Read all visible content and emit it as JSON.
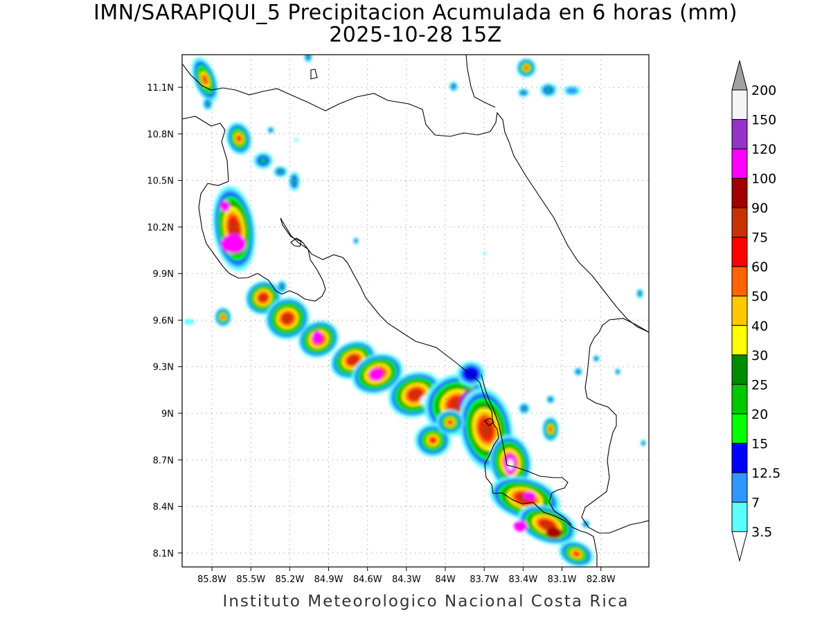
{
  "header": {
    "title_line1": "IMN/SARAPIQUI_5 Precipitacion Acumulada en 6 horas (mm)",
    "title_line2": "2025-10-28 15Z"
  },
  "footer": {
    "credit": "Instituto Meteorologico Nacional Costa Rica"
  },
  "map": {
    "lon_range": [
      -86.03,
      -82.43
    ],
    "lat_range": [
      8.01,
      11.31
    ],
    "lon_ticks": [
      {
        "value": -85.8,
        "label": "85.8W"
      },
      {
        "value": -85.5,
        "label": "85.5W"
      },
      {
        "value": -85.2,
        "label": "85.2W"
      },
      {
        "value": -84.9,
        "label": "84.9W"
      },
      {
        "value": -84.6,
        "label": "84.6W"
      },
      {
        "value": -84.3,
        "label": "84.3W"
      },
      {
        "value": -84.0,
        "label": "84W"
      },
      {
        "value": -83.7,
        "label": "83.7W"
      },
      {
        "value": -83.4,
        "label": "83.4W"
      },
      {
        "value": -83.1,
        "label": "83.1W"
      },
      {
        "value": -82.8,
        "label": "82.8W"
      }
    ],
    "lat_ticks": [
      {
        "value": 11.1,
        "label": "11.1N"
      },
      {
        "value": 10.8,
        "label": "10.8N"
      },
      {
        "value": 10.5,
        "label": "10.5N"
      },
      {
        "value": 10.2,
        "label": "10.2N"
      },
      {
        "value": 9.9,
        "label": "9.9N"
      },
      {
        "value": 9.6,
        "label": "9.6N"
      },
      {
        "value": 9.3,
        "label": "9.3N"
      },
      {
        "value": 9.0,
        "label": "9N"
      },
      {
        "value": 8.7,
        "label": "8.7N"
      },
      {
        "value": 8.4,
        "label": "8.4N"
      },
      {
        "value": 8.1,
        "label": "8.1N"
      }
    ],
    "grid": "dotted",
    "coastline_color": "#000000"
  },
  "legend": {
    "under_color": "#ffffff",
    "over_color": "#a0a0a0",
    "levels": [
      {
        "label": "3.5",
        "color": "#5cffff"
      },
      {
        "label": "7",
        "color": "#3296ff"
      },
      {
        "label": "12.5",
        "color": "#0000ff"
      },
      {
        "label": "15",
        "color": "#00ff00"
      },
      {
        "label": "20",
        "color": "#00c800"
      },
      {
        "label": "25",
        "color": "#008c00"
      },
      {
        "label": "30",
        "color": "#ffff00"
      },
      {
        "label": "40",
        "color": "#ffc800"
      },
      {
        "label": "50",
        "color": "#ff6400"
      },
      {
        "label": "60",
        "color": "#ff0000"
      },
      {
        "label": "75",
        "color": "#c83200"
      },
      {
        "label": "90",
        "color": "#a00000"
      },
      {
        "label": "100",
        "color": "#ff00ff"
      },
      {
        "label": "120",
        "color": "#9632c8"
      },
      {
        "label": "150",
        "color": "#f5f5f5"
      },
      {
        "label": "200",
        "color": ""
      }
    ]
  }
}
